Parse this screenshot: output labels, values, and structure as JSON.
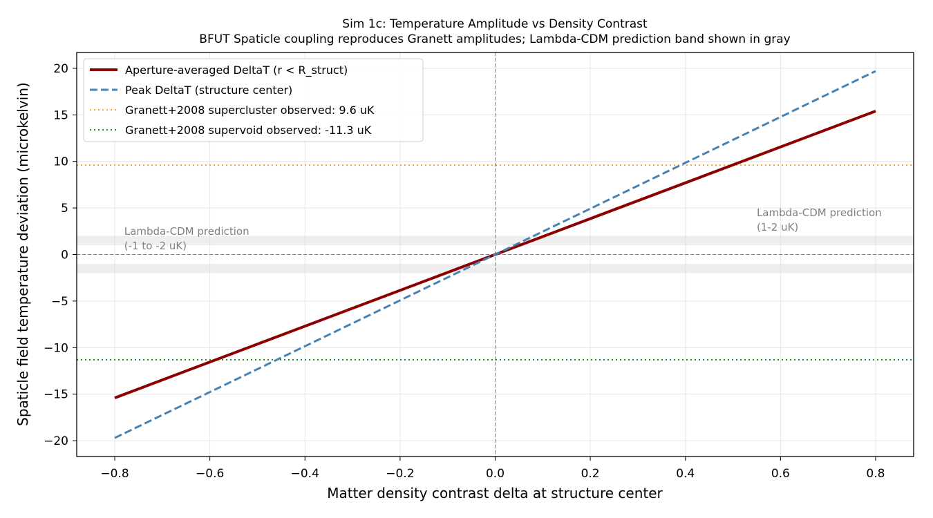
{
  "chart_data": {
    "type": "line",
    "title": "Sim 1c: Temperature Amplitude vs Density Contrast",
    "subtitle": "BFUT Spaticle coupling reproduces Granett amplitudes; Lambda-CDM prediction band shown in gray",
    "xlabel": "Matter density contrast delta at structure center",
    "ylabel": "Spaticle field temperature deviation (microkelvin)",
    "xlim": [
      -0.88,
      0.88
    ],
    "ylim": [
      -21.7,
      21.7
    ],
    "grid": true,
    "legend_position": "top-left",
    "x_ticks": [
      -0.8,
      -0.6,
      -0.4,
      -0.2,
      0.0,
      0.2,
      0.4,
      0.6,
      0.8
    ],
    "x_tick_labels": [
      "−0.8",
      "−0.6",
      "−0.4",
      "−0.2",
      "0.0",
      "0.2",
      "0.4",
      "0.6",
      "0.8"
    ],
    "y_ticks": [
      -20,
      -15,
      -10,
      -5,
      0,
      5,
      10,
      15,
      20
    ],
    "y_tick_labels": [
      "−20",
      "−15",
      "−10",
      "−5",
      "0",
      "5",
      "10",
      "15",
      "20"
    ],
    "series": [
      {
        "name": "Aperture-averaged DeltaT (r < R_struct)",
        "color": "#8b0000",
        "style": "solid",
        "x": [
          -0.8,
          0.8
        ],
        "y": [
          -15.4,
          15.4
        ]
      },
      {
        "name": "Peak DeltaT (structure center)",
        "color": "#4682b4",
        "style": "dashed",
        "x": [
          -0.8,
          0.8
        ],
        "y": [
          -19.7,
          19.7
        ]
      }
    ],
    "hlines": [
      {
        "name": "Granett+2008 supercluster observed: 9.6 uK",
        "y": 9.6,
        "color": "#f5a623",
        "style": "dotted"
      },
      {
        "name": "Granett+2008 supervoid observed: -11.3 uK",
        "y": -11.3,
        "color": "#228b22",
        "style": "dotted"
      }
    ],
    "reference_lines": {
      "x0": 0,
      "y0": 0,
      "color": "#808080"
    },
    "bands": [
      {
        "y": [
          1,
          2
        ],
        "color": "#d9d9d9"
      },
      {
        "y": [
          -2,
          -1
        ],
        "color": "#d9d9d9"
      }
    ],
    "annotations": [
      {
        "lines": [
          "Lambda-CDM prediction",
          "(-1 to -2 uK)"
        ],
        "x": -0.78,
        "y": 1.0
      },
      {
        "lines": [
          "Lambda-CDM prediction",
          "(1-2 uK)"
        ],
        "x": 0.55,
        "y": 3.0
      }
    ]
  }
}
